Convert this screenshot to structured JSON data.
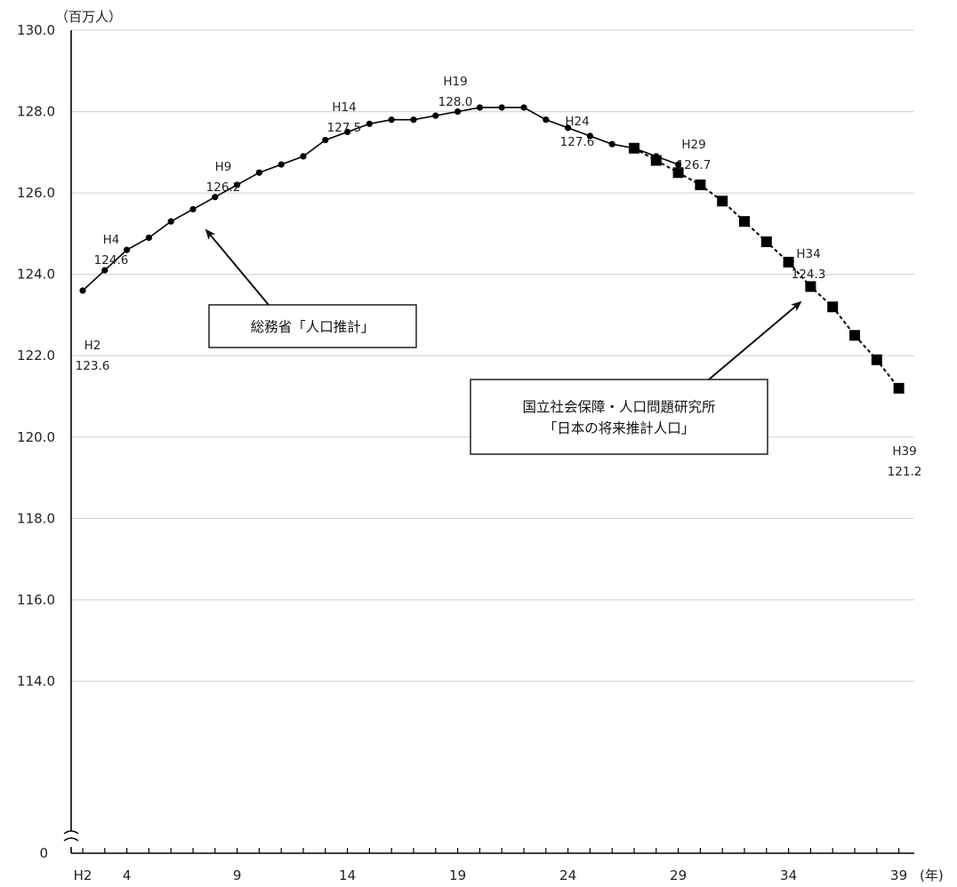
{
  "chart_data": {
    "type": "line",
    "y_unit": "（百万人）",
    "x_unit": "(年)",
    "y_break_label": "0",
    "ylim": [
      112,
      130
    ],
    "y_ticks": [
      {
        "value": 130,
        "label": "130.0"
      },
      {
        "value": 128,
        "label": "128.0"
      },
      {
        "value": 126,
        "label": "126.0"
      },
      {
        "value": 124,
        "label": "124.0"
      },
      {
        "value": 122,
        "label": "122.0"
      },
      {
        "value": 120,
        "label": "120.0"
      },
      {
        "value": 118,
        "label": "118.0"
      },
      {
        "value": 116,
        "label": "116.0"
      },
      {
        "value": 114,
        "label": "114.0"
      }
    ],
    "x_ticks": [
      {
        "value": 2,
        "label": "H2"
      },
      {
        "value": 4,
        "label": "4"
      },
      {
        "value": 9,
        "label": "9"
      },
      {
        "value": 14,
        "label": "14"
      },
      {
        "value": 19,
        "label": "19"
      },
      {
        "value": 24,
        "label": "24"
      },
      {
        "value": 29,
        "label": "29"
      },
      {
        "value": 34,
        "label": "34"
      },
      {
        "value": 39,
        "label": "39"
      }
    ],
    "grid": true,
    "series": [
      {
        "name": "総務省「人口推計」",
        "style": "solid-circle",
        "x": [
          2,
          3,
          4,
          5,
          6,
          7,
          8,
          9,
          10,
          11,
          12,
          13,
          14,
          15,
          16,
          17,
          18,
          19,
          20,
          21,
          22,
          23,
          24,
          25,
          26,
          27,
          28,
          29
        ],
        "values": [
          123.6,
          124.1,
          124.6,
          124.9,
          125.3,
          125.6,
          125.9,
          126.2,
          126.5,
          126.7,
          126.9,
          127.3,
          127.5,
          127.7,
          127.8,
          127.8,
          127.9,
          128.0,
          128.1,
          128.1,
          128.1,
          127.8,
          127.6,
          127.4,
          127.2,
          127.1,
          126.9,
          126.7
        ]
      },
      {
        "name": "国立社会保障・人口問題研究所\n「日本の将来推計人口」",
        "style": "dashed-square",
        "x": [
          27,
          28,
          29,
          30,
          31,
          32,
          33,
          34,
          35,
          36,
          37,
          38,
          39
        ],
        "values": [
          127.1,
          126.8,
          126.5,
          126.2,
          125.8,
          125.3,
          124.8,
          124.3,
          123.7,
          123.2,
          122.5,
          121.9,
          121.2
        ]
      }
    ],
    "annotations": [
      {
        "name": "H2",
        "year": "H2",
        "value": "123.6"
      },
      {
        "name": "H4",
        "year": "H4",
        "value": "124.6"
      },
      {
        "name": "H9",
        "year": "H9",
        "value": "126.2"
      },
      {
        "name": "H14",
        "year": "H14",
        "value": "127.5"
      },
      {
        "name": "H19",
        "year": "H19",
        "value": "128.0"
      },
      {
        "name": "H24",
        "year": "H24",
        "value": "127.6"
      },
      {
        "name": "H29",
        "year": "H29",
        "value": "126.7"
      },
      {
        "name": "H34",
        "year": "H34",
        "value": "124.3"
      },
      {
        "name": "H39",
        "year": "H39",
        "value": "121.2"
      }
    ],
    "callouts": [
      {
        "name": "estimate",
        "lines": [
          "総務省「人口推計」"
        ]
      },
      {
        "name": "projection",
        "lines": [
          "国立社会保障・人口問題研究所",
          "「日本の将来推計人口」"
        ]
      }
    ]
  }
}
